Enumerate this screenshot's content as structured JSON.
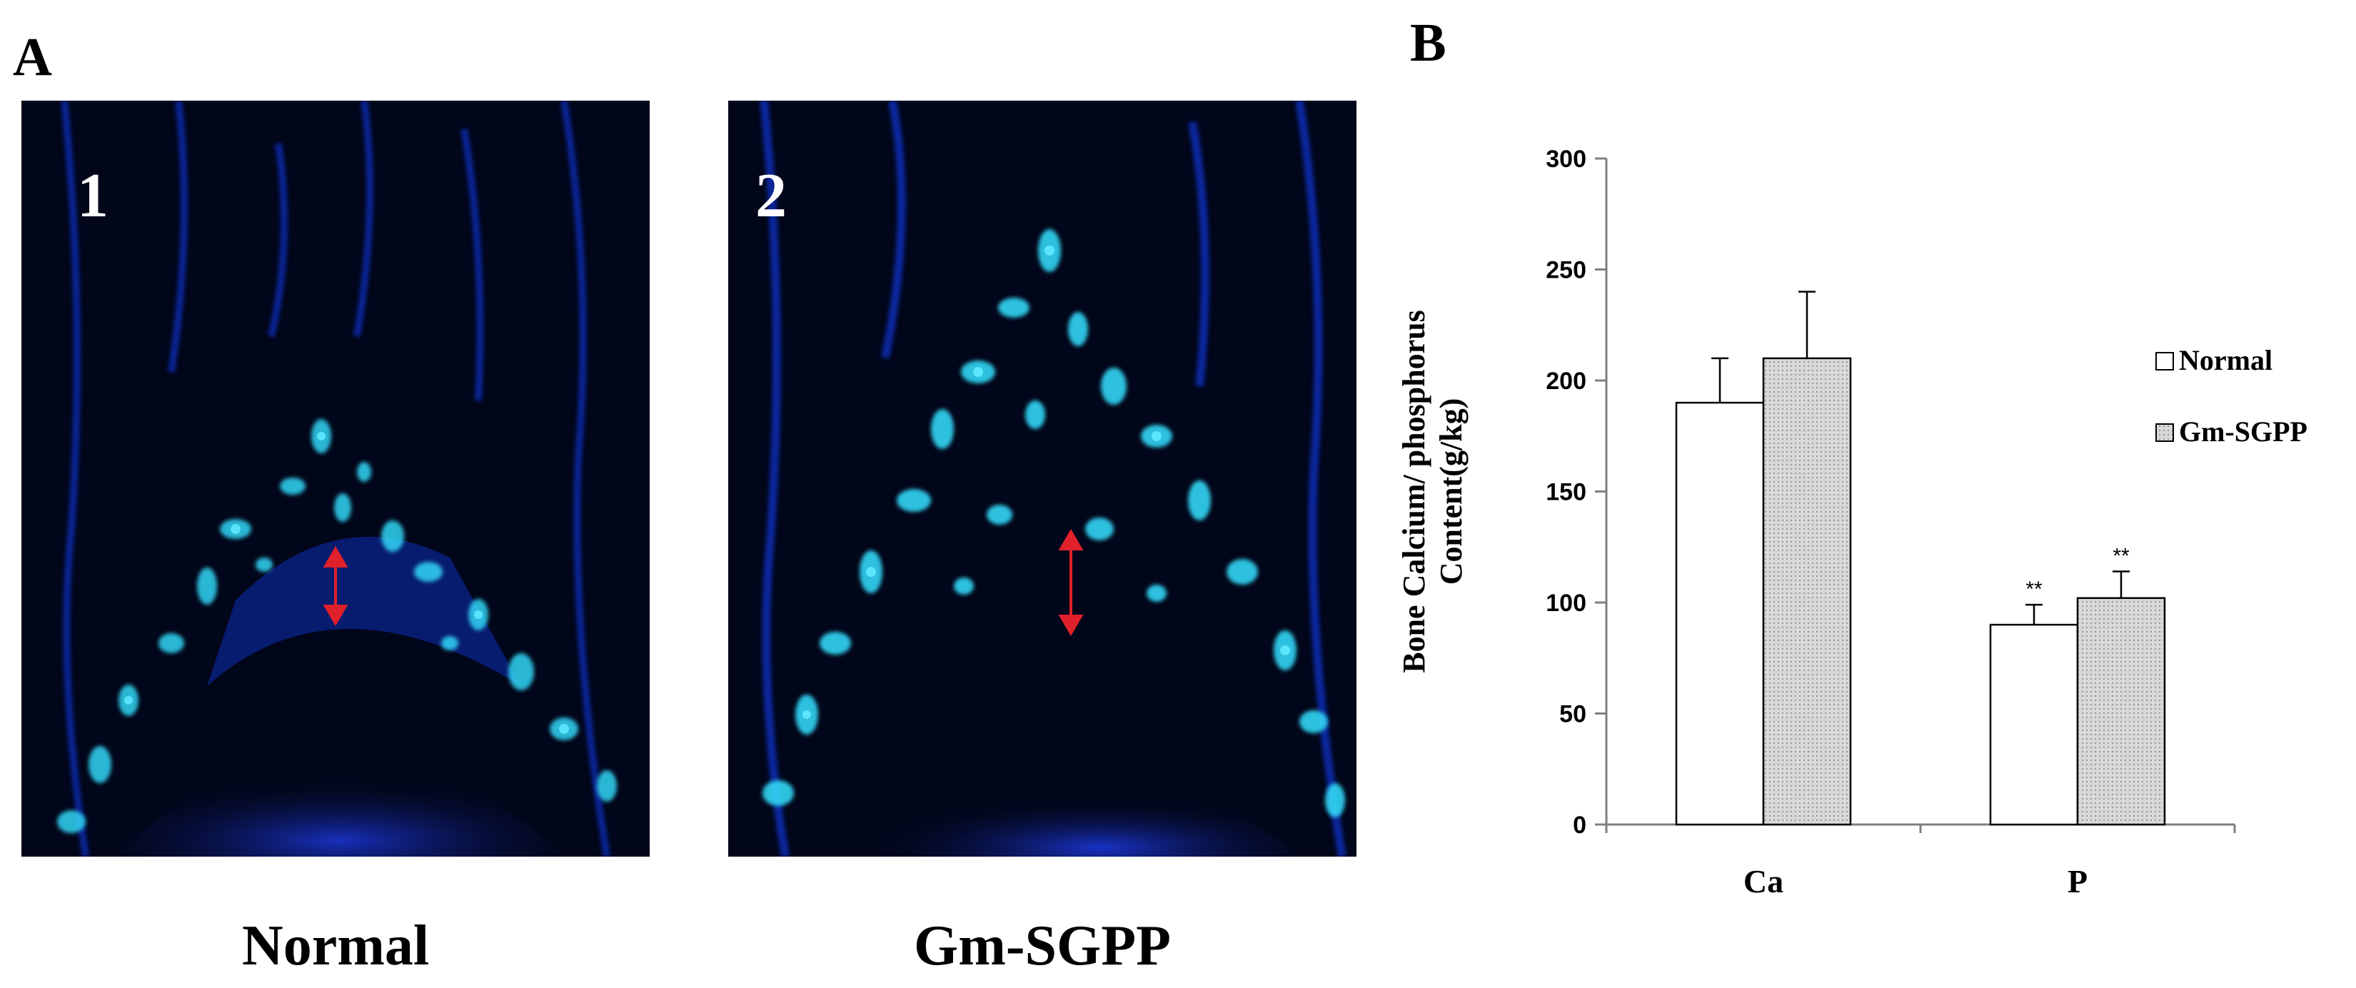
{
  "panel_a": {
    "letter": "A",
    "images": [
      {
        "number": "1",
        "caption": "Normal"
      },
      {
        "number": "2",
        "caption": "Gm-SGPP"
      }
    ]
  },
  "panel_b": {
    "letter": "B"
  },
  "colors": {
    "micro_background": "#02061a",
    "micro_blue": "#1030c8",
    "micro_cyan": "#33d6f5",
    "arrow": "#e0202a",
    "normal_bar": "#ffffff",
    "gmsgpp_bar": "#d9d9d9"
  },
  "chart_data": {
    "type": "bar",
    "categories": [
      "Ca",
      "P"
    ],
    "series": [
      {
        "name": "Normal",
        "values": [
          190,
          90
        ],
        "errors": [
          20,
          9
        ]
      },
      {
        "name": "Gm-SGPP",
        "values": [
          210,
          102
        ],
        "errors": [
          30,
          12
        ]
      }
    ],
    "significance": [
      [
        "",
        "**"
      ],
      [
        "",
        "**"
      ]
    ],
    "ylabel_lines": [
      "Bone Calcium/ phosphorus",
      "Content(g/kg)"
    ],
    "xlabel": "",
    "ylim": [
      0,
      300
    ],
    "yticks": [
      0,
      50,
      100,
      150,
      200,
      250,
      300
    ],
    "legend_position": "right",
    "grid": false
  }
}
